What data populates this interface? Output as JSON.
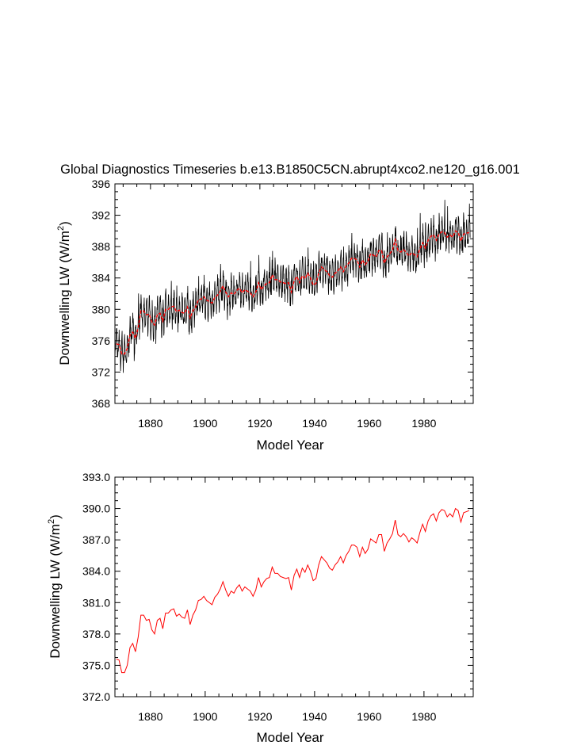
{
  "title": "Global Diagnostics Timeseries b.e13.B1850C5CN.abrupt4xco2.ne120_g16.001",
  "colors": {
    "monthly": "#000000",
    "annual": "#ff0000",
    "axis": "#000000"
  },
  "chart_data": [
    {
      "type": "line",
      "title": "Global Diagnostics Timeseries b.e13.B1850C5CN.abrupt4xco2.ne120_g16.001",
      "xlabel": "Model Year",
      "ylabel_main": "Downwelling LW (W/m",
      "ylabel_sup": "2",
      "ylabel_close": ")",
      "xlim": [
        1867,
        1998
      ],
      "ylim": [
        368,
        396
      ],
      "xticks": [
        1880,
        1900,
        1920,
        1940,
        1960,
        1980
      ],
      "yticks": [
        368,
        372,
        376,
        380,
        384,
        388,
        392,
        396
      ],
      "yticklabels": [
        "368",
        "372",
        "376",
        "380",
        "384",
        "388",
        "392",
        "396"
      ],
      "series": [
        {
          "name": "monthly",
          "color": "#000000",
          "seasonal_amplitude": 1.6,
          "generated_from": "annual_mean"
        },
        {
          "name": "annual_mean",
          "color": "#ff0000",
          "uses": "annual_series"
        }
      ]
    },
    {
      "type": "line",
      "xlabel": "Model Year",
      "ylabel_main": "Downwelling LW (W/m",
      "ylabel_sup": "2",
      "ylabel_close": ")",
      "xlim": [
        1867,
        1998
      ],
      "ylim": [
        372,
        393
      ],
      "xticks": [
        1880,
        1900,
        1920,
        1940,
        1960,
        1980
      ],
      "yticks": [
        372,
        375,
        378,
        381,
        384,
        387,
        390,
        393
      ],
      "yticklabels": [
        "372.0",
        "375.0",
        "378.0",
        "381.0",
        "384.0",
        "387.0",
        "390.0",
        "393.0"
      ],
      "series": [
        {
          "name": "annual_mean",
          "color": "#ff0000",
          "uses": "annual_series"
        }
      ]
    }
  ],
  "annual_series": {
    "x_start": 1867.5,
    "values": [
      375.6,
      375.5,
      374.3,
      374.3,
      375.0,
      376.7,
      377.1,
      376.3,
      377.7,
      379.8,
      379.8,
      379.3,
      379.4,
      378.4,
      378.0,
      379.3,
      379.5,
      378.5,
      380.0,
      380.0,
      380.3,
      380.4,
      379.7,
      379.9,
      379.6,
      379.5,
      380.3,
      378.9,
      379.8,
      380.3,
      381.2,
      381.3,
      381.6,
      381.2,
      381.0,
      380.8,
      381.5,
      381.8,
      382.3,
      383.0,
      382.2,
      381.6,
      382.1,
      381.9,
      382.4,
      382.7,
      382.1,
      382.5,
      382.3,
      382.1,
      381.6,
      382.2,
      383.4,
      382.5,
      383.0,
      383.3,
      383.4,
      384.4,
      383.8,
      383.8,
      383.5,
      383.4,
      383.3,
      383.4,
      382.2,
      383.6,
      384.2,
      383.4,
      384.3,
      383.9,
      384.6,
      384.0,
      383.1,
      383.3,
      384.6,
      385.4,
      385.1,
      384.8,
      384.3,
      384.1,
      384.6,
      384.9,
      385.4,
      384.8,
      385.5,
      385.9,
      386.5,
      386.5,
      386.3,
      385.4,
      386.3,
      385.7,
      386.1,
      387.1,
      386.9,
      386.7,
      387.5,
      387.5,
      385.9,
      386.7,
      387.1,
      387.6,
      388.9,
      387.5,
      387.3,
      387.6,
      387.3,
      386.8,
      387.2,
      387.0,
      386.7,
      387.7,
      388.5,
      387.8,
      388.8,
      389.3,
      389.5,
      388.8,
      389.6,
      389.9,
      389.8,
      389.2,
      389.5,
      389.2,
      390.0,
      389.8,
      388.7,
      389.6,
      389.7,
      389.8
    ]
  }
}
